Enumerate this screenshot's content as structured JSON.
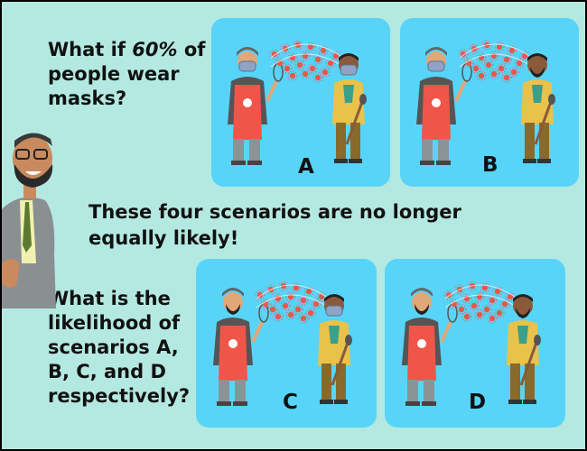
{
  "question_top": {
    "before": "What if ",
    "em": "60%",
    "after": " of people wear masks?"
  },
  "statement": "These four scenarios are no longer equally likely!",
  "question_bottom": "What is the likelihood of scenarios A, B, C, and D respectively?",
  "scenarios": [
    {
      "label": "A",
      "speaker_mask": true,
      "listener_mask": true
    },
    {
      "label": "B",
      "speaker_mask": true,
      "listener_mask": false
    },
    {
      "label": "C",
      "speaker_mask": false,
      "listener_mask": true
    },
    {
      "label": "D",
      "speaker_mask": false,
      "listener_mask": false
    }
  ],
  "colors": {
    "background": "#b4e9e1",
    "panel": "#58d4f8",
    "virus": "#e8584a",
    "apron": "#f0554a"
  }
}
